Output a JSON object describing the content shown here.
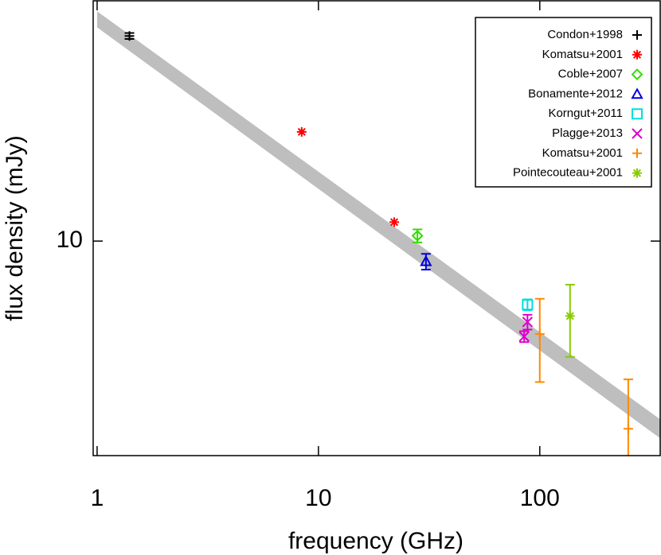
{
  "chart_data": {
    "type": "scatter",
    "xlabel": "frequency (GHz)",
    "ylabel": "flux density (mJy)",
    "xscale": "log",
    "yscale": "log",
    "xlim": [
      0.96,
      350
    ],
    "ylim": [
      2.05,
      59
    ],
    "xticks": [
      1,
      10,
      100
    ],
    "yticks": [
      10
    ],
    "legend": "upper right",
    "band": {
      "color": "#bebebe",
      "x": [
        1,
        350
      ],
      "upper": [
        54.6,
        2.68
      ],
      "lower": [
        48.5,
        2.33
      ]
    },
    "series": [
      {
        "name": "Condon+1998",
        "color": "#000000",
        "marker": "plus",
        "x": [
          1.4
        ],
        "values": [
          45.5
        ],
        "errors": [
          1.0
        ]
      },
      {
        "name": "Komatsu+2001",
        "color": "#ff0000",
        "marker": "asterisk",
        "x": [
          8.4,
          22
        ],
        "values": [
          22.4,
          11.5
        ]
      },
      {
        "name": "Coble+2007",
        "color": "#33dd00",
        "marker": "diamond",
        "x": [
          28
        ],
        "values": [
          10.4
        ],
        "errors": [
          0.5
        ]
      },
      {
        "name": "Bonamente+2012",
        "color": "#0000dd",
        "marker": "triangle",
        "x": [
          30.6
        ],
        "values": [
          8.6
        ],
        "errors": [
          0.5
        ]
      },
      {
        "name": "Korngut+2011",
        "color": "#00dddd",
        "marker": "square",
        "x": [
          88
        ],
        "values": [
          6.25
        ],
        "errors": [
          0.25
        ]
      },
      {
        "name": "Plagge+2013",
        "color": "#dd00cc",
        "marker": "x",
        "x": [
          88,
          85
        ],
        "values": [
          5.5,
          4.94
        ],
        "errors": [
          0.3,
          0.2
        ]
      },
      {
        "name": "Komatsu+2001",
        "color": "#ff8800",
        "marker": "plus",
        "x": [
          100,
          251
        ],
        "values": [
          5.03,
          2.5
        ],
        "errors": [
          1.5,
          1.1
        ]
      },
      {
        "name": "Pointecouteau+2001",
        "color": "#88cc00",
        "marker": "asterisk",
        "x": [
          137
        ],
        "values": [
          5.75
        ],
        "errors": [
          1.5
        ]
      }
    ]
  }
}
